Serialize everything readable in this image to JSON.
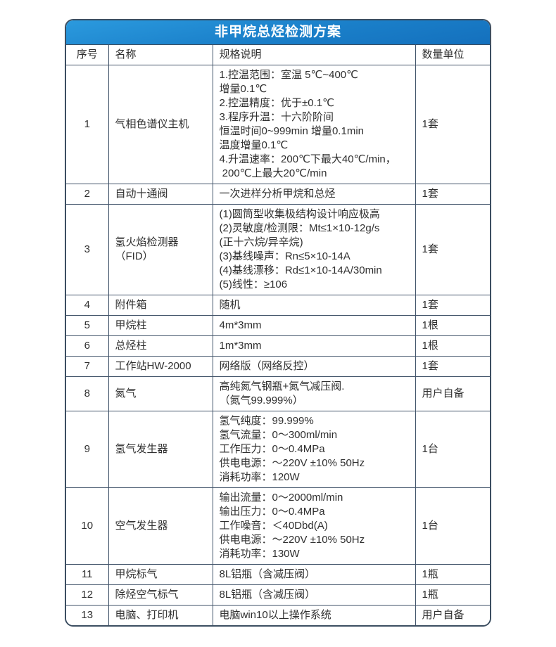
{
  "title": "非甲烷总烃检测方案",
  "columns": [
    "序号",
    "名称",
    "规格说明",
    "数量单位"
  ],
  "colors": {
    "header_gradient_top": "#2b9ade",
    "header_gradient_bottom": "#1470bd",
    "border": "#42546a",
    "title_text": "#ffffff",
    "body_text": "#2f2f2f"
  },
  "rows": [
    {
      "no": "1",
      "name": "气相色谱仪主机",
      "spec": [
        "1.控温范围：室温 5℃~400℃",
        "增量0.1℃",
        "2.控温精度：优于±0.1℃",
        "3.程序升温：十六阶阶间",
        "恒温时间0~999min 增量0.1min",
        "温度增量0.1℃",
        "4.升温速率：200℃下最大40℃/min，",
        " 200℃上最大20℃/min"
      ],
      "qty": "1套"
    },
    {
      "no": "2",
      "name": "自动十通阀",
      "spec": [
        "一次进样分析甲烷和总烃"
      ],
      "qty": "1套"
    },
    {
      "no": "3",
      "name": "氢火焰检测器（FID）",
      "spec": [
        "(1)圆筒型收集极结构设计响应极高",
        "(2)灵敏度/检测限：Mt≤1×10-12g/s",
        "(正十六烷/异辛烷)",
        "(3)基线噪声：Rn≤5×10-14A",
        "(4)基线漂移：Rd≤1×10-14A/30min",
        "(5)线性：≥106"
      ],
      "qty": "1套"
    },
    {
      "no": "4",
      "name": "附件箱",
      "spec": [
        "随机"
      ],
      "qty": "1套"
    },
    {
      "no": "5",
      "name": "甲烷柱",
      "spec": [
        "4m*3mm"
      ],
      "qty": "1根"
    },
    {
      "no": "6",
      "name": "总烃柱",
      "spec": [
        "1m*3mm"
      ],
      "qty": "1根"
    },
    {
      "no": "7",
      "name": "工作站HW-2000",
      "spec": [
        "网络版（网络反控）"
      ],
      "qty": "1套"
    },
    {
      "no": "8",
      "name": "氮气",
      "spec": [
        "高纯氮气钢瓶+氮气减压阀.",
        "（氮气99.999%）"
      ],
      "qty": "用户自备"
    },
    {
      "no": "9",
      "name": "氢气发生器",
      "spec": [
        "氢气纯度：99.999%",
        "氢气流量：0～300ml/min",
        "工作压力：0～0.4MPa",
        "供电电源：～220V ±10% 50Hz",
        "消耗功率：120W"
      ],
      "qty": "1台"
    },
    {
      "no": "10",
      "name": "空气发生器",
      "spec": [
        "输出流量：0～2000ml/min",
        "输出压力：0～0.4MPa",
        "工作噪音：＜40Dbd(A)",
        "供电电源：～220V ±10% 50Hz",
        "消耗功率：130W"
      ],
      "qty": "1台"
    },
    {
      "no": "11",
      "name": "甲烷标气",
      "spec": [
        "8L铝瓶（含减压阀）"
      ],
      "qty": "1瓶"
    },
    {
      "no": "12",
      "name": "除烃空气标气",
      "spec": [
        "8L铝瓶（含减压阀）"
      ],
      "qty": "1瓶"
    },
    {
      "no": "13",
      "name": "电脑、打印机",
      "spec": [
        "电脑win10以上操作系统"
      ],
      "qty": "用户自备"
    }
  ]
}
